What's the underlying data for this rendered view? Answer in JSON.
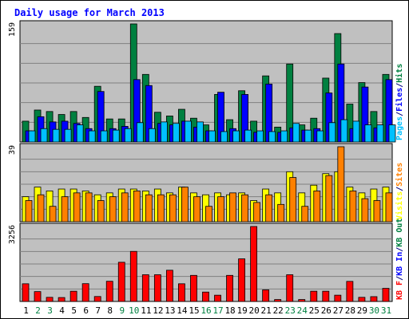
{
  "chart_data": [
    {
      "type": "bar",
      "title": "Daily usage for March 2013",
      "ylabel": "Pages / Files / Hits",
      "ymax_label": "159",
      "ylim": [
        0,
        159
      ],
      "categories": [
        "1",
        "2",
        "3",
        "4",
        "5",
        "6",
        "7",
        "8",
        "9",
        "10",
        "11",
        "12",
        "13",
        "14",
        "15",
        "16",
        "17",
        "18",
        "19",
        "20",
        "21",
        "22",
        "23",
        "24",
        "25",
        "26",
        "27",
        "28",
        "29",
        "30",
        "31"
      ],
      "series": [
        {
          "name": "Hits",
          "color": "#008040",
          "values": [
            28,
            43,
            41,
            37,
            41,
            33,
            75,
            31,
            31,
            159,
            91,
            40,
            35,
            44,
            32,
            23,
            64,
            30,
            69,
            28,
            89,
            20,
            105,
            23,
            32,
            86,
            146,
            51,
            80,
            41,
            91
          ]
        },
        {
          "name": "Files",
          "color": "#0000ff",
          "values": [
            15,
            34,
            27,
            28,
            25,
            18,
            68,
            18,
            21,
            84,
            76,
            25,
            23,
            28,
            20,
            15,
            67,
            18,
            64,
            13,
            78,
            13,
            19,
            16,
            18,
            66,
            105,
            18,
            74,
            19,
            84
          ]
        },
        {
          "name": "Pages",
          "color": "#00c0ff",
          "values": [
            15,
            18,
            17,
            17,
            23,
            15,
            15,
            16,
            18,
            26,
            18,
            27,
            25,
            28,
            27,
            15,
            14,
            15,
            16,
            15,
            14,
            15,
            25,
            16,
            15,
            26,
            30,
            28,
            23,
            23,
            23
          ]
        }
      ]
    },
    {
      "type": "bar",
      "ylabel": "Visits / Sites",
      "ymax_label": "39",
      "ylim": [
        0,
        39
      ],
      "categories": [
        "1",
        "2",
        "3",
        "4",
        "5",
        "6",
        "7",
        "8",
        "9",
        "10",
        "11",
        "12",
        "13",
        "14",
        "15",
        "16",
        "17",
        "18",
        "19",
        "20",
        "21",
        "22",
        "23",
        "24",
        "25",
        "26",
        "27",
        "28",
        "29",
        "30",
        "31"
      ],
      "series": [
        {
          "name": "Visits",
          "color": "#ffff00",
          "values": [
            13,
            18,
            16,
            17,
            17,
            16,
            14,
            15,
            17,
            17,
            16,
            17,
            15,
            18,
            15,
            14,
            15,
            14,
            15,
            11,
            17,
            15,
            26,
            15,
            19,
            25,
            26,
            18,
            15,
            17,
            18
          ]
        },
        {
          "name": "Sites",
          "color": "#ff8000",
          "values": [
            11,
            14,
            8,
            13,
            15,
            15,
            11,
            13,
            15,
            16,
            14,
            14,
            14,
            18,
            13,
            8,
            13,
            15,
            14,
            10,
            14,
            9,
            23,
            8,
            16,
            24,
            39,
            16,
            12,
            11,
            15
          ]
        }
      ]
    },
    {
      "type": "bar",
      "ylabel": "KB F / KB In / KB Out",
      "ymax_label": "3256",
      "ylim": [
        0,
        3256
      ],
      "categories": [
        "1",
        "2",
        "3",
        "4",
        "5",
        "6",
        "7",
        "8",
        "9",
        "10",
        "11",
        "12",
        "13",
        "14",
        "15",
        "16",
        "17",
        "18",
        "19",
        "20",
        "21",
        "22",
        "23",
        "24",
        "25",
        "26",
        "27",
        "28",
        "29",
        "30",
        "31"
      ],
      "series": [
        {
          "name": "KB F",
          "color": "#ff0000",
          "values": [
            768,
            428,
            179,
            170,
            444,
            773,
            215,
            877,
            1702,
            2174,
            1161,
            1161,
            1356,
            768,
            1133,
            408,
            272,
            1133,
            1851,
            3256,
            503,
            84,
            1161,
            84,
            445,
            445,
            273,
            872,
            179,
            209,
            570
          ]
        }
      ]
    }
  ],
  "xlabel_colors": {
    "weekday": "#000000",
    "weekend": "#008040"
  },
  "weekend_days": [
    "2",
    "3",
    "9",
    "10",
    "16",
    "17",
    "23",
    "24",
    "30",
    "31"
  ],
  "legend_labels": {
    "top": [
      "Pages",
      "/",
      "Files",
      "/",
      "Hits"
    ],
    "top_colors": [
      "#00c0ff",
      "#000080",
      "#0000ff",
      "#000080",
      "#008040"
    ],
    "mid": [
      "Visits",
      "/",
      "Sites"
    ],
    "mid_colors": [
      "#ffff00",
      "#000080",
      "#ff8000"
    ],
    "bot": [
      "KB F",
      "/",
      "KB In",
      "/",
      "KB Out"
    ],
    "bot_colors": [
      "#ff0000",
      "#000080",
      "#0000ff",
      "#000080",
      "#008040"
    ]
  },
  "colors": {
    "panel_bg": "#c0c0c0",
    "frame_bg": "#ffffff",
    "title": "#0000ff",
    "grid": "#808080"
  }
}
